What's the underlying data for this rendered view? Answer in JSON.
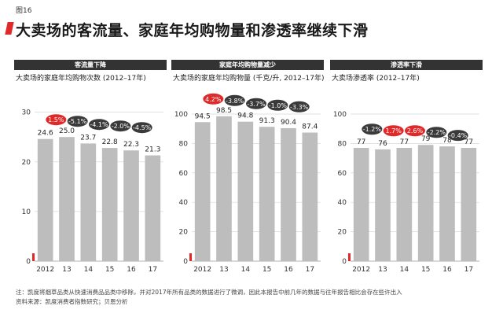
{
  "figure_label": "图16",
  "title": "大卖场的客流量、家庭年均购物量和渗透率继续下滑",
  "colors": {
    "bar": "#bdbdbd",
    "highlight": "#e02a2a",
    "badge": "#3a3a3a",
    "header": "#333333",
    "grid": "#d9d9d9"
  },
  "chart_data": [
    {
      "type": "bar",
      "header": "客流量下降",
      "subtitle": "大卖场的家庭年均购物次数 (2012–17年)",
      "categories": [
        "2012",
        "13",
        "14",
        "15",
        "16",
        "17"
      ],
      "values": [
        24.6,
        25.0,
        23.7,
        22.8,
        22.3,
        21.3
      ],
      "value_labels": [
        "24.6",
        "25.0",
        "23.7",
        "22.8",
        "22.3",
        "21.3"
      ],
      "changes": [
        {
          "after": 1,
          "label": "1.5%",
          "positive": true
        },
        {
          "after": 2,
          "label": "-5.1%",
          "positive": false
        },
        {
          "after": 3,
          "label": "-4.1%",
          "positive": false
        },
        {
          "after": 4,
          "label": "-2.0%",
          "positive": false
        },
        {
          "after": 5,
          "label": "-4.5%",
          "positive": false
        }
      ],
      "yticks": [
        0,
        10,
        20,
        30
      ],
      "ylim": [
        0,
        32
      ]
    },
    {
      "type": "bar",
      "header": "家庭年均购物量减少",
      "subtitle": "大卖场的家庭年均购物量 (千克/升, 2012–17年)",
      "categories": [
        "2012",
        "13",
        "14",
        "15",
        "16",
        "17"
      ],
      "values": [
        94.5,
        98.5,
        94.8,
        91.3,
        90.4,
        87.4
      ],
      "value_labels": [
        "94.5",
        "98.5",
        "94.8",
        "91.3",
        "90.4",
        "87.4"
      ],
      "changes": [
        {
          "after": 1,
          "label": "4.2%",
          "positive": true
        },
        {
          "after": 2,
          "label": "-3.8%",
          "positive": false
        },
        {
          "after": 3,
          "label": "-3.7%",
          "positive": false
        },
        {
          "after": 4,
          "label": "-1.0%",
          "positive": false
        },
        {
          "after": 5,
          "label": "-3.3%",
          "positive": false
        }
      ],
      "yticks": [
        0,
        20,
        40,
        60,
        80,
        100
      ],
      "ylim": [
        0,
        108
      ]
    },
    {
      "type": "bar",
      "header": "渗透率下滑",
      "subtitle": "大卖场渗透率 (2012–17年)",
      "categories": [
        "2012",
        "13",
        "14",
        "15",
        "16",
        "17"
      ],
      "values": [
        77,
        76,
        77,
        79,
        78,
        77
      ],
      "value_labels": [
        "77",
        "76",
        "77",
        "79",
        "78",
        "77"
      ],
      "changes": [
        {
          "after": 1,
          "label": "-1.2%",
          "positive": false
        },
        {
          "after": 2,
          "label": "1.7%",
          "positive": true
        },
        {
          "after": 3,
          "label": "2.6%",
          "positive": true
        },
        {
          "after": 4,
          "label": "-2.2%",
          "positive": false
        },
        {
          "after": 5,
          "label": "-0.4%",
          "positive": false
        }
      ],
      "yticks": [
        0,
        20,
        40,
        60,
        80,
        100
      ],
      "ylim": [
        0,
        108
      ]
    }
  ],
  "footnotes": {
    "note": "注：凯度将烟草品类从快速消费品品类中移除，并对2017年所有品类的数据进行了微调，因此本报告中前几年的数据与往年报告相比会存在些许出入",
    "source": "资料来源：凯度消费者指数研究；贝恩分析"
  }
}
